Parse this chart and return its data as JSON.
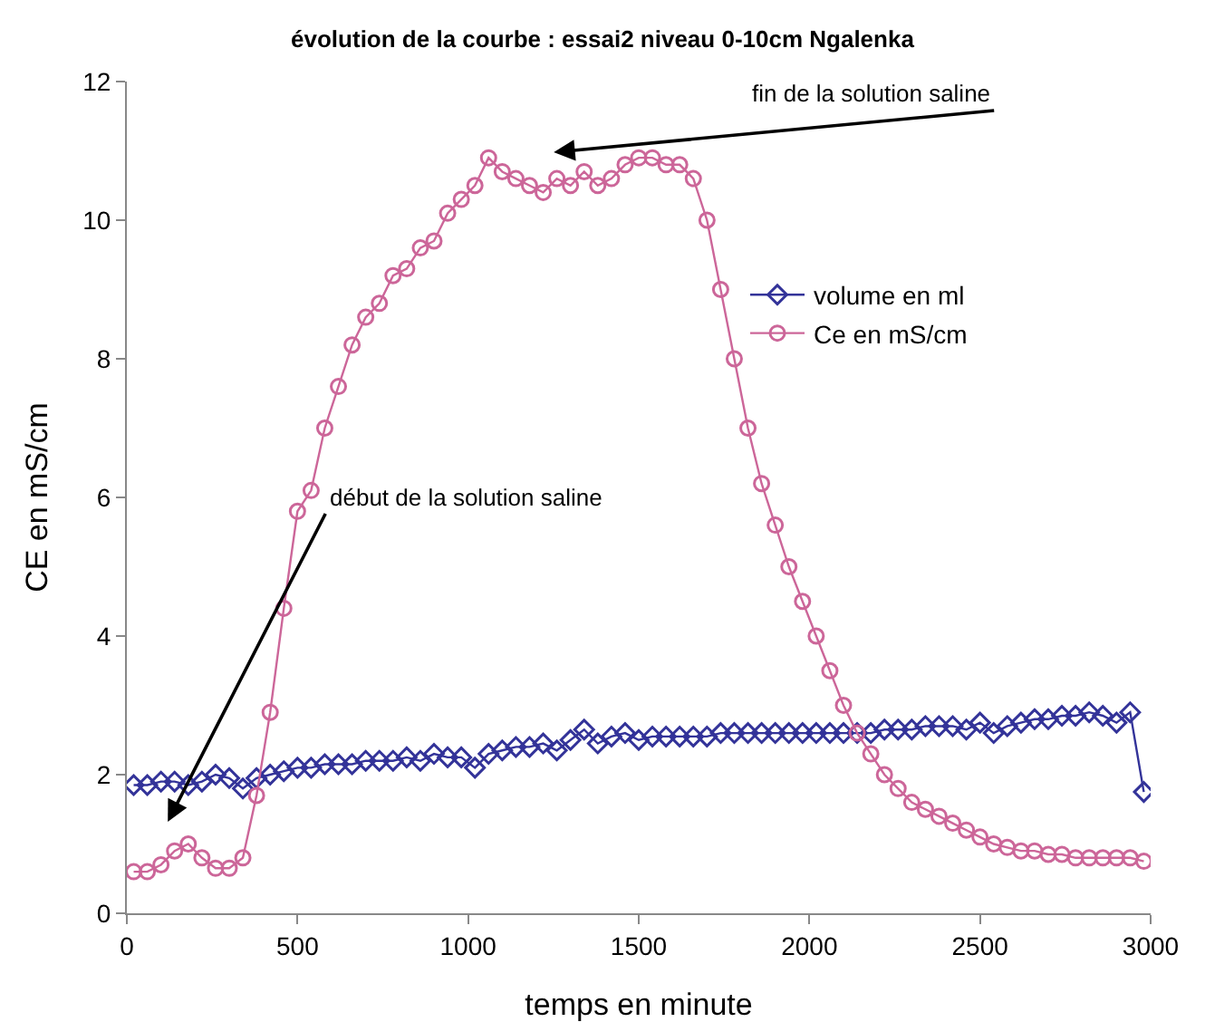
{
  "chart_data": {
    "type": "line",
    "title": "évolution de la courbe : essai2 niveau 0-10cm Ngalenka",
    "xlabel": "temps en minute",
    "ylabel": "CE en mS/cm",
    "xlim": [
      0,
      3000
    ],
    "xticks": [
      0,
      500,
      1000,
      1500,
      2000,
      2500,
      3000
    ],
    "ylim": [
      0,
      12
    ],
    "yticks": [
      0,
      2,
      4,
      6,
      8,
      10,
      12
    ],
    "grid": false,
    "legend": "right",
    "x": [
      20,
      60,
      100,
      140,
      180,
      220,
      260,
      300,
      340,
      380,
      420,
      460,
      500,
      540,
      580,
      620,
      660,
      700,
      740,
      780,
      820,
      860,
      900,
      940,
      980,
      1020,
      1060,
      1100,
      1140,
      1180,
      1220,
      1260,
      1300,
      1340,
      1380,
      1420,
      1460,
      1500,
      1540,
      1580,
      1620,
      1660,
      1700,
      1740,
      1780,
      1820,
      1860,
      1900,
      1940,
      1980,
      2020,
      2060,
      2100,
      2140,
      2180,
      2220,
      2260,
      2300,
      2340,
      2380,
      2420,
      2460,
      2500,
      2540,
      2580,
      2620,
      2660,
      2700,
      2740,
      2780,
      2820,
      2860,
      2900,
      2940,
      2980
    ],
    "series": [
      {
        "name": "volume en ml",
        "color": "#333399",
        "marker": "diamond",
        "values": [
          1.85,
          1.85,
          1.9,
          1.9,
          1.85,
          1.9,
          2.0,
          1.95,
          1.8,
          1.95,
          2.0,
          2.05,
          2.1,
          2.1,
          2.15,
          2.15,
          2.15,
          2.2,
          2.2,
          2.2,
          2.25,
          2.2,
          2.3,
          2.25,
          2.25,
          2.1,
          2.3,
          2.35,
          2.4,
          2.4,
          2.45,
          2.35,
          2.5,
          2.65,
          2.45,
          2.55,
          2.6,
          2.5,
          2.55,
          2.55,
          2.55,
          2.55,
          2.55,
          2.6,
          2.6,
          2.6,
          2.6,
          2.6,
          2.6,
          2.6,
          2.6,
          2.6,
          2.6,
          2.6,
          2.6,
          2.65,
          2.65,
          2.65,
          2.7,
          2.7,
          2.7,
          2.65,
          2.75,
          2.6,
          2.7,
          2.75,
          2.8,
          2.8,
          2.85,
          2.85,
          2.9,
          2.85,
          2.75,
          2.9,
          1.75
        ]
      },
      {
        "name": "Ce en mS/cm",
        "color": "#cc6699",
        "marker": "circle",
        "values": [
          0.6,
          0.6,
          0.7,
          0.9,
          1.0,
          0.8,
          0.65,
          0.65,
          0.8,
          1.7,
          2.9,
          4.4,
          5.8,
          6.1,
          7.0,
          7.6,
          8.2,
          8.6,
          8.8,
          9.2,
          9.3,
          9.6,
          9.7,
          10.1,
          10.3,
          10.5,
          10.9,
          10.7,
          10.6,
          10.5,
          10.4,
          10.6,
          10.5,
          10.7,
          10.5,
          10.6,
          10.8,
          10.9,
          10.9,
          10.8,
          10.8,
          10.6,
          10.0,
          9.0,
          8.0,
          7.0,
          6.2,
          5.6,
          5.0,
          4.5,
          4.0,
          3.5,
          3.0,
          2.6,
          2.3,
          2.0,
          1.8,
          1.6,
          1.5,
          1.4,
          1.3,
          1.2,
          1.1,
          1.0,
          0.95,
          0.9,
          0.9,
          0.85,
          0.85,
          0.8,
          0.8,
          0.8,
          0.8,
          0.8,
          0.75
        ]
      }
    ],
    "annotations": [
      "début de la solution saline",
      "fin de la solution saline"
    ]
  }
}
